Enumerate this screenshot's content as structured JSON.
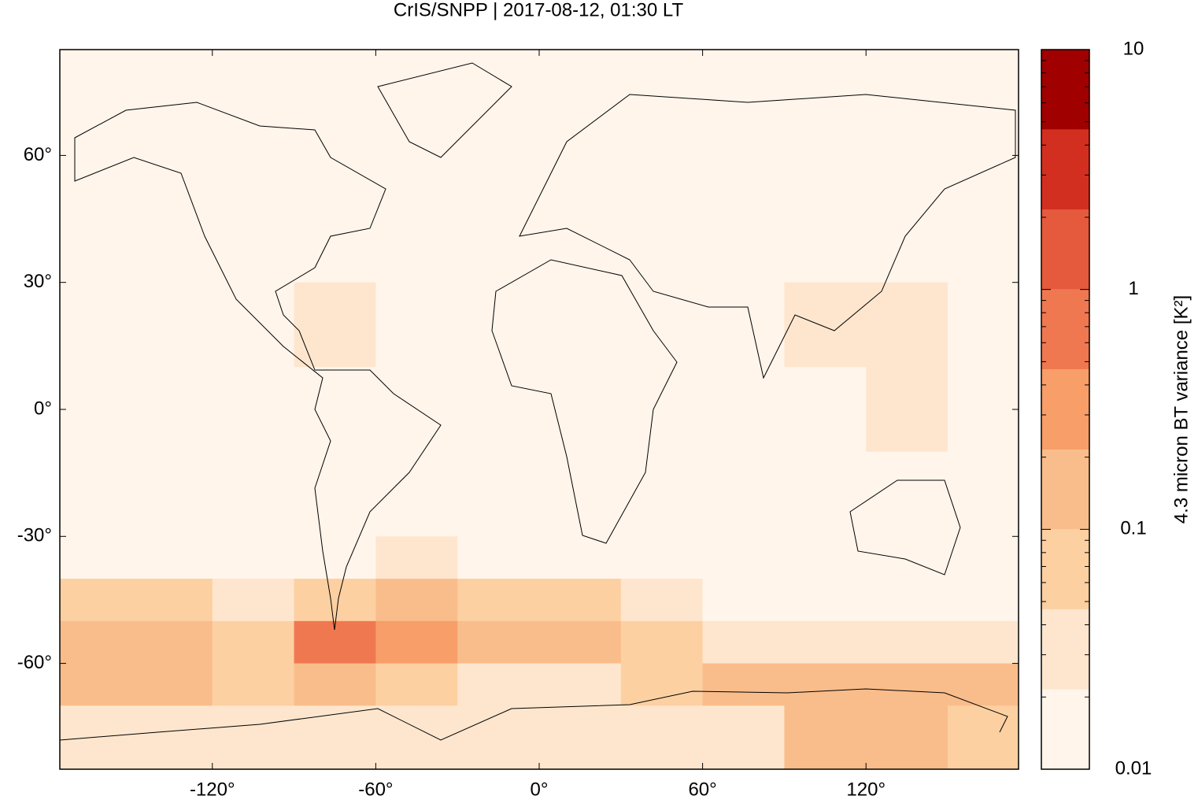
{
  "chart_data": {
    "type": "heatmap",
    "title": "CrIS/SNPP | 2017-08-12, 01:30 LT",
    "xlim": [
      -176,
      176
    ],
    "ylim": [
      -85,
      85
    ],
    "xticks": [
      {
        "value": -120,
        "label": "-120°"
      },
      {
        "value": -60,
        "label": "-60°"
      },
      {
        "value": 0,
        "label": "0°"
      },
      {
        "value": 60,
        "label": "60°"
      },
      {
        "value": 120,
        "label": "120°"
      }
    ],
    "yticks": [
      {
        "value": 60,
        "label": "60°"
      },
      {
        "value": 30,
        "label": "30°"
      },
      {
        "value": 0,
        "label": "0°"
      },
      {
        "value": -30,
        "label": "-30°"
      },
      {
        "value": -60,
        "label": "-60°"
      }
    ],
    "grid": false,
    "lon_edges": [
      -176,
      -150,
      -120,
      -90,
      -60,
      -30,
      0,
      30,
      60,
      90,
      120,
      150,
      176
    ],
    "lat_edges": [
      85,
      70,
      50,
      30,
      10,
      -10,
      -30,
      -40,
      -50,
      -60,
      -70,
      -85
    ],
    "values": [
      [
        0.015,
        0.015,
        0.015,
        0.015,
        0.015,
        0.015,
        0.015,
        0.015,
        0.015,
        0.015,
        0.015,
        0.015
      ],
      [
        0.015,
        0.015,
        0.015,
        0.015,
        0.015,
        0.015,
        0.015,
        0.015,
        0.015,
        0.015,
        0.015,
        0.015
      ],
      [
        0.015,
        0.015,
        0.015,
        0.015,
        0.015,
        0.015,
        0.015,
        0.015,
        0.015,
        0.015,
        0.015,
        0.015
      ],
      [
        0.015,
        0.015,
        0.02,
        0.025,
        0.02,
        0.015,
        0.02,
        0.02,
        0.015,
        0.025,
        0.025,
        0.015
      ],
      [
        0.015,
        0.015,
        0.015,
        0.02,
        0.02,
        0.015,
        0.015,
        0.015,
        0.015,
        0.015,
        0.025,
        0.015
      ],
      [
        0.015,
        0.015,
        0.015,
        0.015,
        0.02,
        0.015,
        0.015,
        0.015,
        0.015,
        0.015,
        0.015,
        0.015
      ],
      [
        0.02,
        0.02,
        0.02,
        0.02,
        0.03,
        0.02,
        0.015,
        0.015,
        0.015,
        0.015,
        0.015,
        0.015
      ],
      [
        0.05,
        0.05,
        0.04,
        0.05,
        0.15,
        0.05,
        0.05,
        0.04,
        0.015,
        0.015,
        0.015,
        0.015
      ],
      [
        0.15,
        0.1,
        0.07,
        0.5,
        0.3,
        0.1,
        0.1,
        0.05,
        0.03,
        0.03,
        0.03,
        0.03
      ],
      [
        0.2,
        0.1,
        0.07,
        0.1,
        0.07,
        0.04,
        0.03,
        0.08,
        0.15,
        0.15,
        0.12,
        0.2
      ],
      [
        0.03,
        0.03,
        0.03,
        0.03,
        0.03,
        0.03,
        0.03,
        0.03,
        0.04,
        0.1,
        0.1,
        0.05
      ]
    ],
    "colorbar": {
      "label": "4.3 micron BT variance [K²]",
      "log": true,
      "lim": [
        0.01,
        10
      ],
      "ticks": [
        0.01,
        0.1,
        1,
        10
      ],
      "levels": [
        0.01,
        0.0215,
        0.0464,
        0.1,
        0.215,
        0.464,
        1,
        2.15,
        4.64,
        10
      ],
      "colors": [
        "#fff5eb",
        "#fee6ce",
        "#fdd0a2",
        "#f9bd8b",
        "#f79e69",
        "#f07850",
        "#e55a3d",
        "#d32f20",
        "#a00000"
      ]
    }
  }
}
